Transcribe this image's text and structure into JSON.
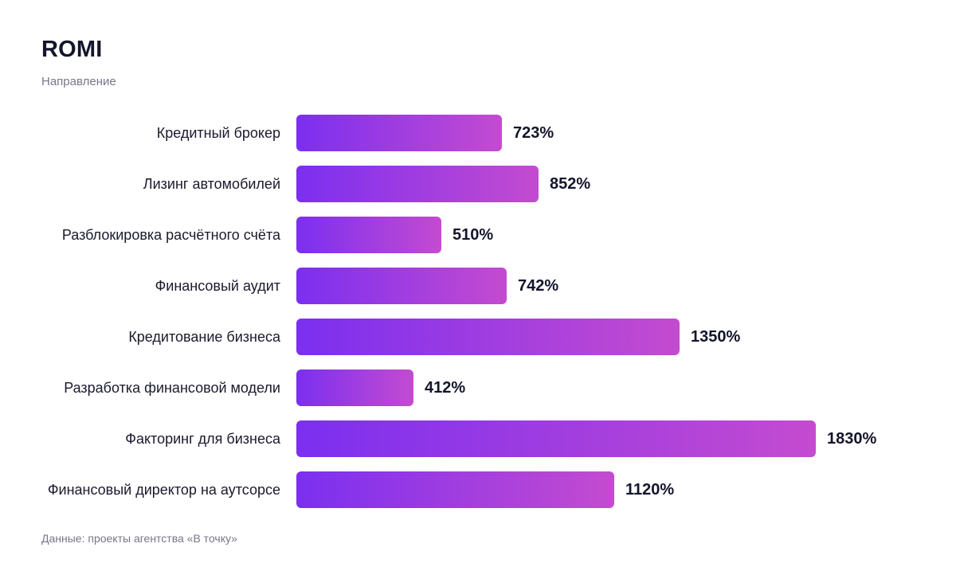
{
  "chart_data": {
    "type": "bar",
    "orientation": "horizontal",
    "title": "ROMI",
    "subtitle": "Направление",
    "categories": [
      "Кредитный брокер",
      "Лизинг автомобилей",
      "Разблокировка расчётного счёта",
      "Финансовый аудит",
      "Кредитование бизнеса",
      "Разработка финансовой модели",
      "Факторинг для бизнеса",
      "Финансовый директор на аутсорсе"
    ],
    "values": [
      723,
      852,
      510,
      742,
      1350,
      412,
      1830,
      1120
    ],
    "value_suffix": "%",
    "xlim": [
      0,
      1830
    ],
    "grid": false,
    "legend": "none",
    "source": "Данные: проекты агентства «В точку»"
  },
  "colors": {
    "bar_start": "#7b2ff0",
    "bar_end": "#c44bd0",
    "text": "#14142b",
    "muted": "#77778a"
  }
}
